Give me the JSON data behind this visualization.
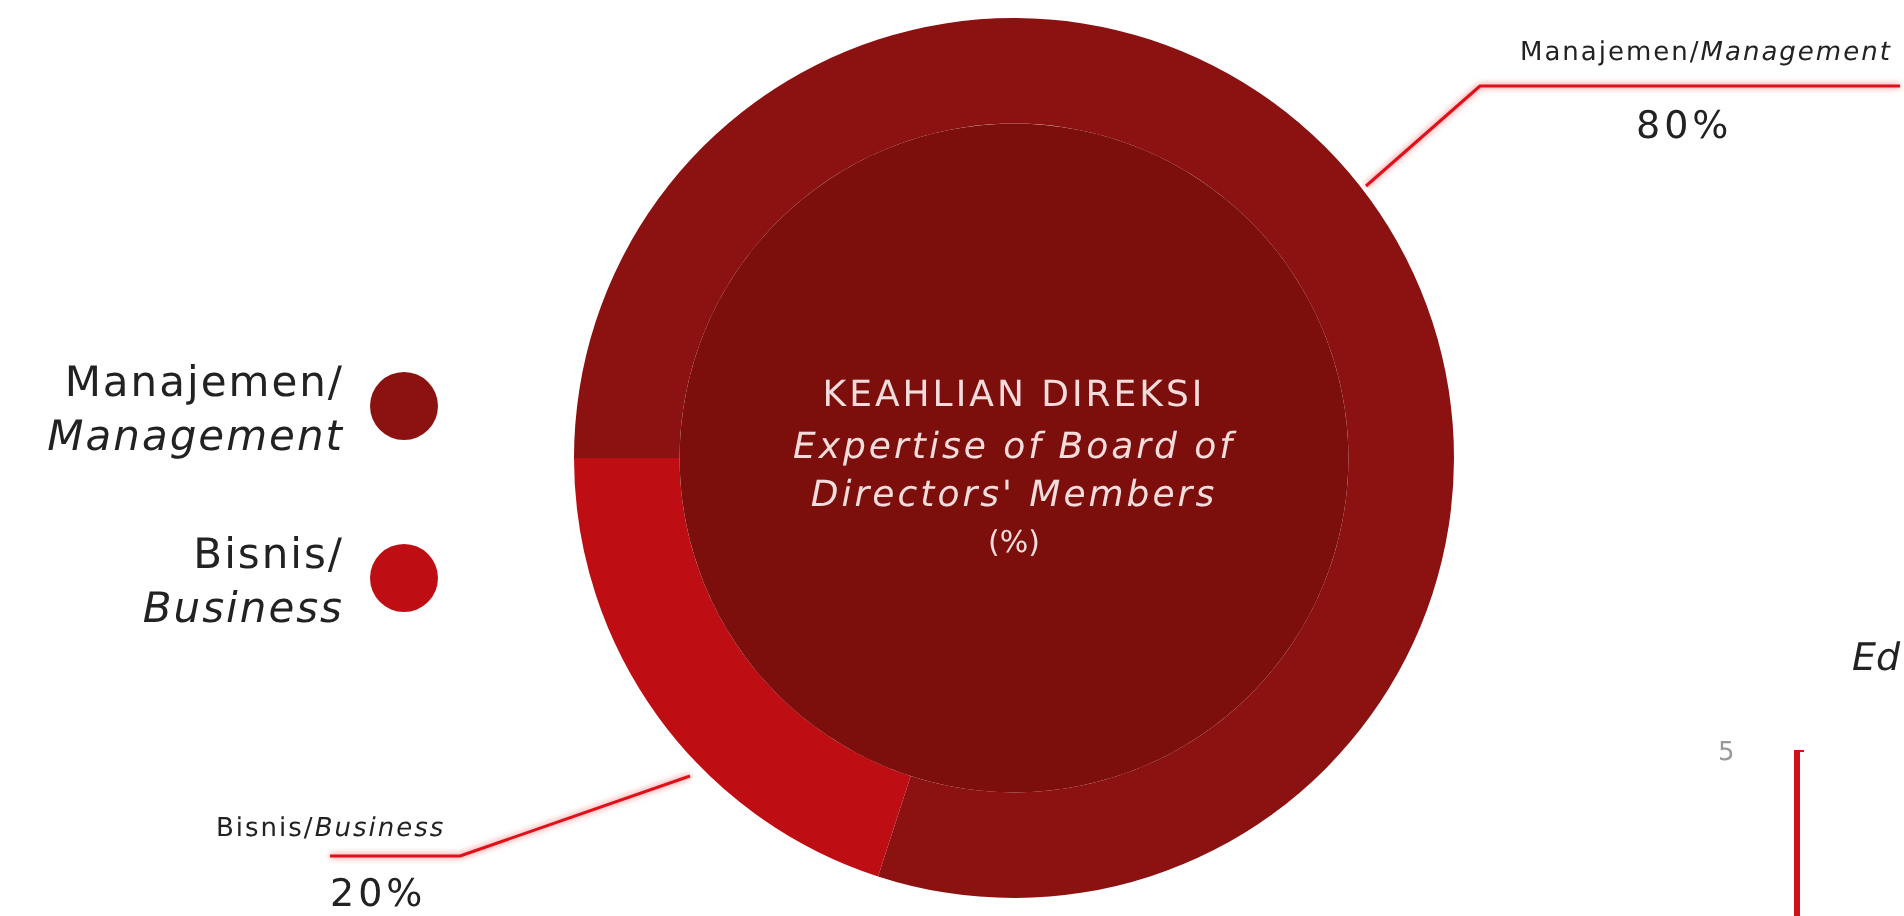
{
  "chart_data": {
    "type": "donut",
    "title": "KEAHLIAN DIREKSI",
    "subtitle": "Expertise of Board of Directors' Members",
    "categories": [
      "Manajemen/Management",
      "Bisnis/Business"
    ],
    "values": [
      80,
      20
    ],
    "colors": [
      "#8b1210",
      "#be0e14"
    ],
    "value_labels": [
      "80%",
      "20%"
    ],
    "legend": "left",
    "annotations": [
      "(%)",
      "Ed",
      "5"
    ]
  }
}
